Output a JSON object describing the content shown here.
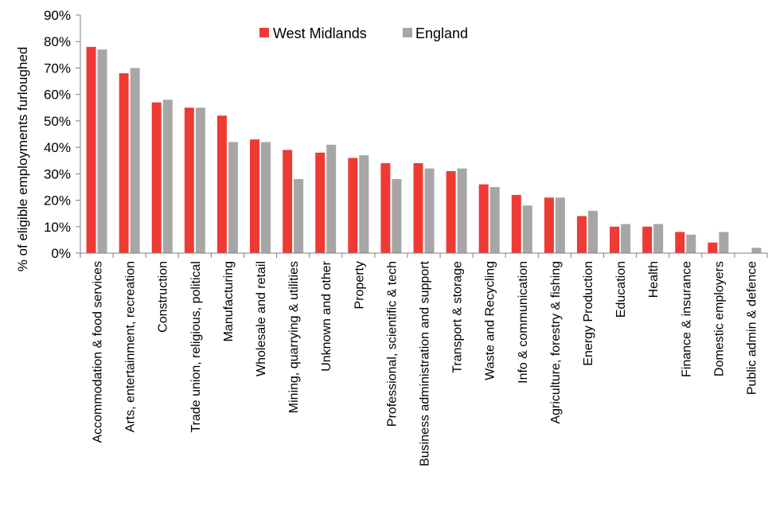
{
  "colors": {
    "west_midlands": "#ef3a33",
    "england": "#a6a6a6",
    "axis": "#808080"
  },
  "chart_data": {
    "type": "bar",
    "title": "",
    "xlabel": "",
    "ylabel": "% of eligible employments furloughed",
    "ylim": [
      0,
      90
    ],
    "yticks": [
      "0%",
      "10%",
      "20%",
      "30%",
      "40%",
      "50%",
      "60%",
      "70%",
      "80%",
      "90%"
    ],
    "grid": false,
    "legend_position": "top-center",
    "categories": [
      "Accommodation & food services",
      "Arts, entertainment, recreation",
      "Construction",
      "Trade union, religious, political",
      "Manufacturing",
      "Wholesale and retail",
      "Mining, quarrying & utilities",
      "Unknown and other",
      "Property",
      "Professional, scientific & tech",
      "Business administration and support",
      "Transport & storage",
      "Waste and Recycling",
      "Info & communication",
      "Agriculture, forestry & fishing",
      "Energy Production",
      "Education",
      "Health",
      "Finance & insurance",
      "Domestic employers",
      "Public admin & defence"
    ],
    "series": [
      {
        "name": "West Midlands",
        "values": [
          78,
          68,
          57,
          55,
          52,
          43,
          39,
          38,
          36,
          34,
          34,
          31,
          26,
          22,
          21,
          14,
          10,
          10,
          8,
          4,
          0
        ]
      },
      {
        "name": "England",
        "values": [
          77,
          70,
          58,
          55,
          42,
          42,
          28,
          41,
          37,
          28,
          32,
          32,
          25,
          18,
          21,
          16,
          11,
          11,
          7,
          8,
          2
        ]
      }
    ]
  }
}
